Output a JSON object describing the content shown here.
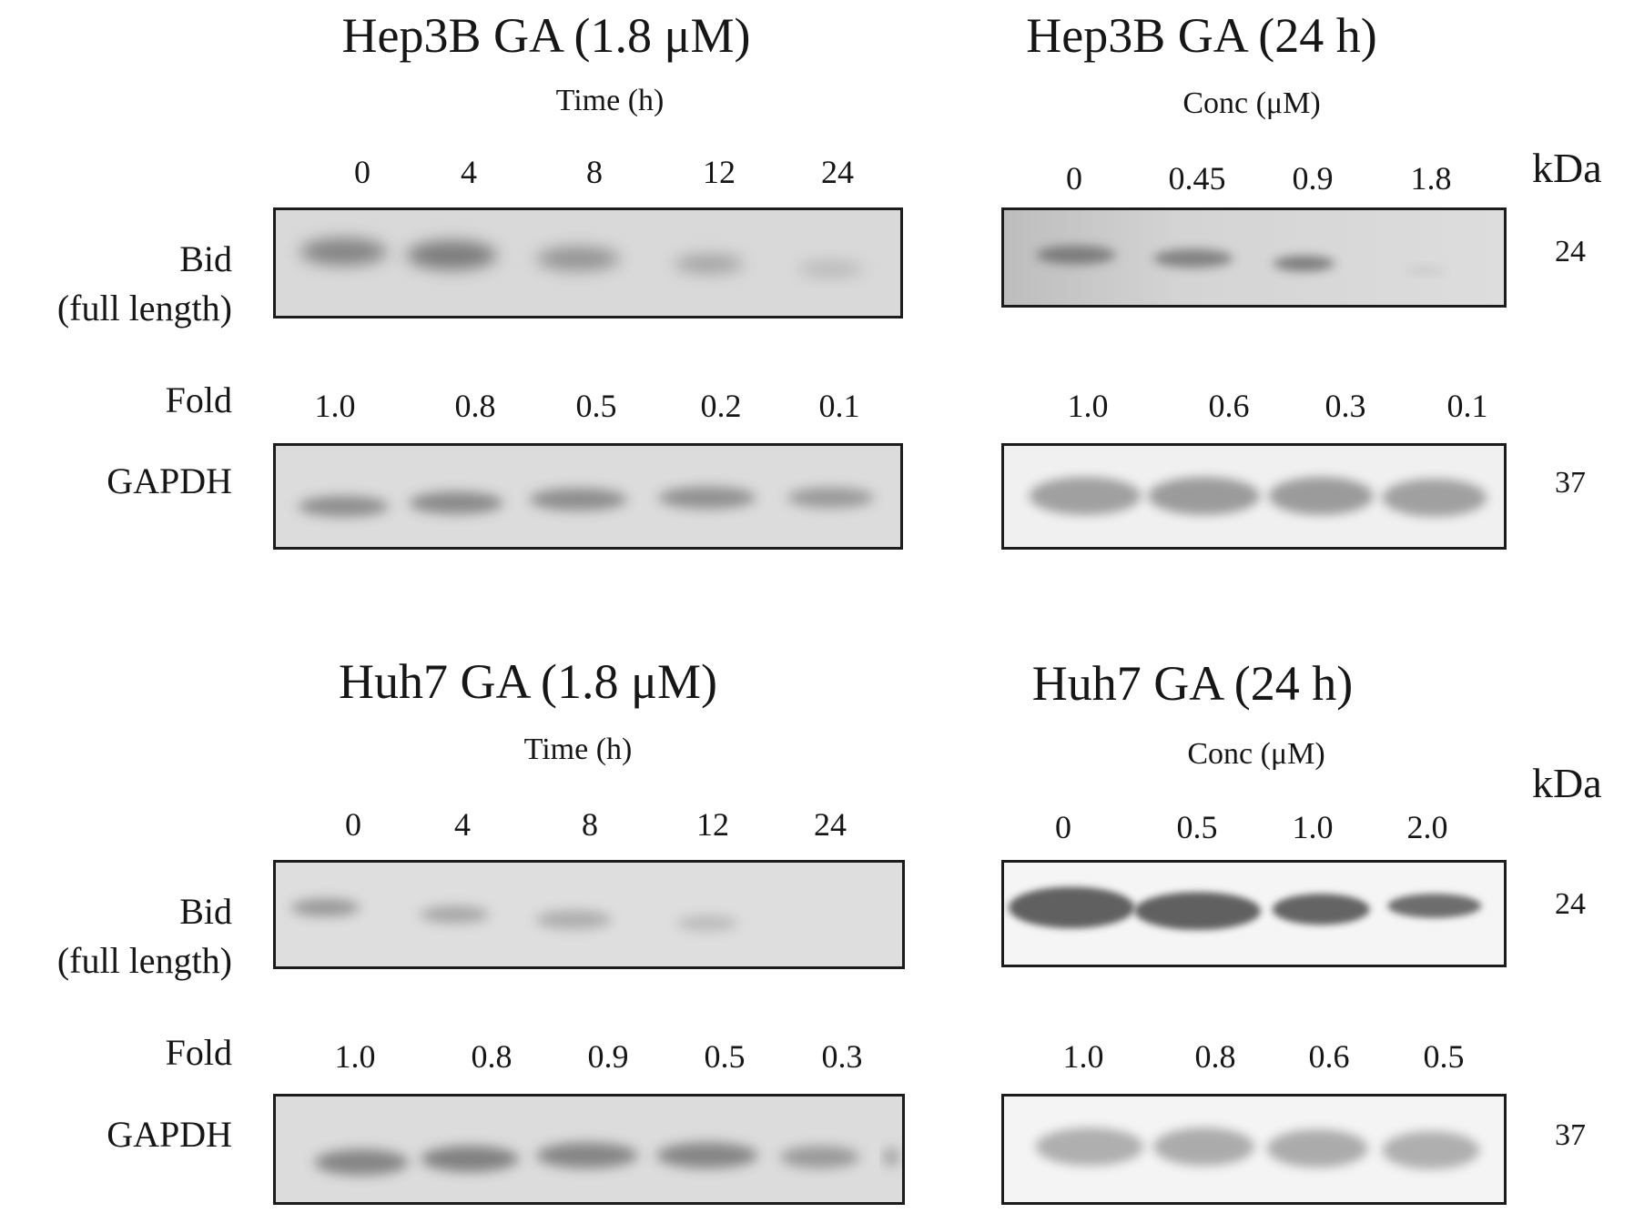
{
  "panels": [
    {
      "id": "hep3b-time",
      "title": "Hep3B GA (1.8 μM)",
      "axis_label": "Time (h)",
      "lanes": [
        "0",
        "4",
        "8",
        "12",
        "24"
      ],
      "fold_label": "Fold",
      "folds": [
        "1.0",
        "0.8",
        "0.5",
        "0.2",
        "0.1"
      ],
      "bid_label_1": "Bid",
      "bid_label_2": "(full length)",
      "gapdh_label": "GAPDH"
    },
    {
      "id": "hep3b-conc",
      "title": "Hep3B GA (24 h)",
      "axis_label": "Conc  (μM)",
      "lanes": [
        "0",
        "0.45",
        "0.9",
        "1.8"
      ],
      "folds": [
        "1.0",
        "0.6",
        "0.3",
        "0.1"
      ],
      "kda_label": "kDa",
      "mw_bid": "24",
      "mw_gapdh": "37"
    },
    {
      "id": "huh7-time",
      "title": "Huh7 GA (1.8 μM)",
      "axis_label": "Time (h)",
      "lanes": [
        "0",
        "4",
        "8",
        "12",
        "24"
      ],
      "fold_label": "Fold",
      "folds": [
        "1.0",
        "0.8",
        "0.9",
        "0.5",
        "0.3"
      ],
      "bid_label_1": "Bid",
      "bid_label_2": "(full length)",
      "gapdh_label": "GAPDH"
    },
    {
      "id": "huh7-conc",
      "title": "Huh7 GA (24 h)",
      "axis_label": "Conc (μM)",
      "lanes": [
        "0",
        "0.5",
        "1.0",
        "2.0"
      ],
      "folds": [
        "1.0",
        "0.8",
        "0.6",
        "0.5"
      ],
      "kda_label": "kDa",
      "mw_bid": "24",
      "mw_gapdh": "37"
    }
  ],
  "colors": {
    "band": "#3f3f3f",
    "blot_bg_light": "#dedede",
    "blot_bg_white": "#f4f4f4"
  }
}
